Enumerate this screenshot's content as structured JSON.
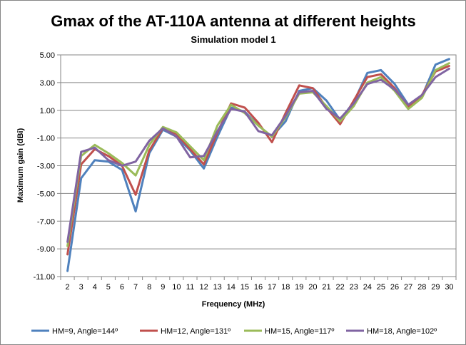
{
  "chart_data": {
    "type": "line",
    "title": "Gmax of the AT-110A antenna at different heights",
    "subtitle": "Simulation model 1",
    "xlabel": "Frequency (MHz)",
    "ylabel": "Maximum gain (dBi)",
    "ylim": [
      -11,
      5
    ],
    "ytick_labels": [
      "5.00",
      "3.00",
      "1.00",
      "-1.00",
      "-3.00",
      "-5.00",
      "-7.00",
      "-9.00",
      "-11.00"
    ],
    "ytick_values": [
      5,
      3,
      1,
      -1,
      -3,
      -5,
      -7,
      -9,
      -11
    ],
    "categories": [
      "2",
      "3",
      "4",
      "5",
      "6",
      "7",
      "8",
      "9",
      "10",
      "11",
      "12",
      "13",
      "14",
      "15",
      "16",
      "17",
      "18",
      "19",
      "20",
      "21",
      "22",
      "23",
      "24",
      "25",
      "26",
      "27",
      "28",
      "29",
      "30"
    ],
    "grid": true,
    "legend_position": "bottom",
    "series": [
      {
        "name": "HM=9, Angle=144º",
        "color": "#4F81BD",
        "values": [
          -10.6,
          -3.9,
          -2.6,
          -2.7,
          -3.3,
          -6.3,
          -2.1,
          -0.4,
          -0.9,
          -1.9,
          -3.2,
          -0.9,
          1.2,
          0.9,
          -0.1,
          -0.9,
          0.2,
          2.4,
          2.6,
          1.7,
          0.3,
          1.6,
          3.7,
          3.9,
          2.9,
          1.4,
          2.0,
          4.3,
          4.7
        ]
      },
      {
        "name": "HM=12, Angle=131º",
        "color": "#C0504D",
        "values": [
          -9.4,
          -2.9,
          -1.8,
          -2.3,
          -3.0,
          -5.1,
          -1.9,
          -0.3,
          -0.7,
          -1.8,
          -2.9,
          -0.6,
          1.5,
          1.2,
          0.1,
          -1.3,
          0.8,
          2.8,
          2.6,
          1.2,
          0.0,
          1.7,
          3.4,
          3.6,
          2.6,
          1.2,
          2.1,
          3.8,
          4.2
        ]
      },
      {
        "name": "HM=15, Angle=117º",
        "color": "#9BBB59",
        "values": [
          -8.8,
          -2.3,
          -1.5,
          -2.1,
          -2.8,
          -3.7,
          -1.5,
          -0.2,
          -0.6,
          -1.6,
          -2.6,
          -0.1,
          1.4,
          0.8,
          -0.1,
          -0.9,
          0.5,
          2.2,
          2.3,
          1.3,
          0.2,
          1.3,
          3.0,
          3.4,
          2.4,
          1.1,
          1.9,
          3.9,
          4.4
        ]
      },
      {
        "name": "HM=18, Angle=102º",
        "color": "#8064A2",
        "values": [
          -8.5,
          -2.0,
          -1.7,
          -2.6,
          -3.0,
          -2.7,
          -1.2,
          -0.3,
          -0.9,
          -2.4,
          -2.3,
          -0.5,
          1.1,
          0.9,
          -0.5,
          -0.8,
          0.6,
          2.3,
          2.4,
          1.1,
          0.4,
          1.5,
          2.9,
          3.2,
          2.5,
          1.4,
          2.1,
          3.4,
          4.0
        ]
      }
    ]
  }
}
